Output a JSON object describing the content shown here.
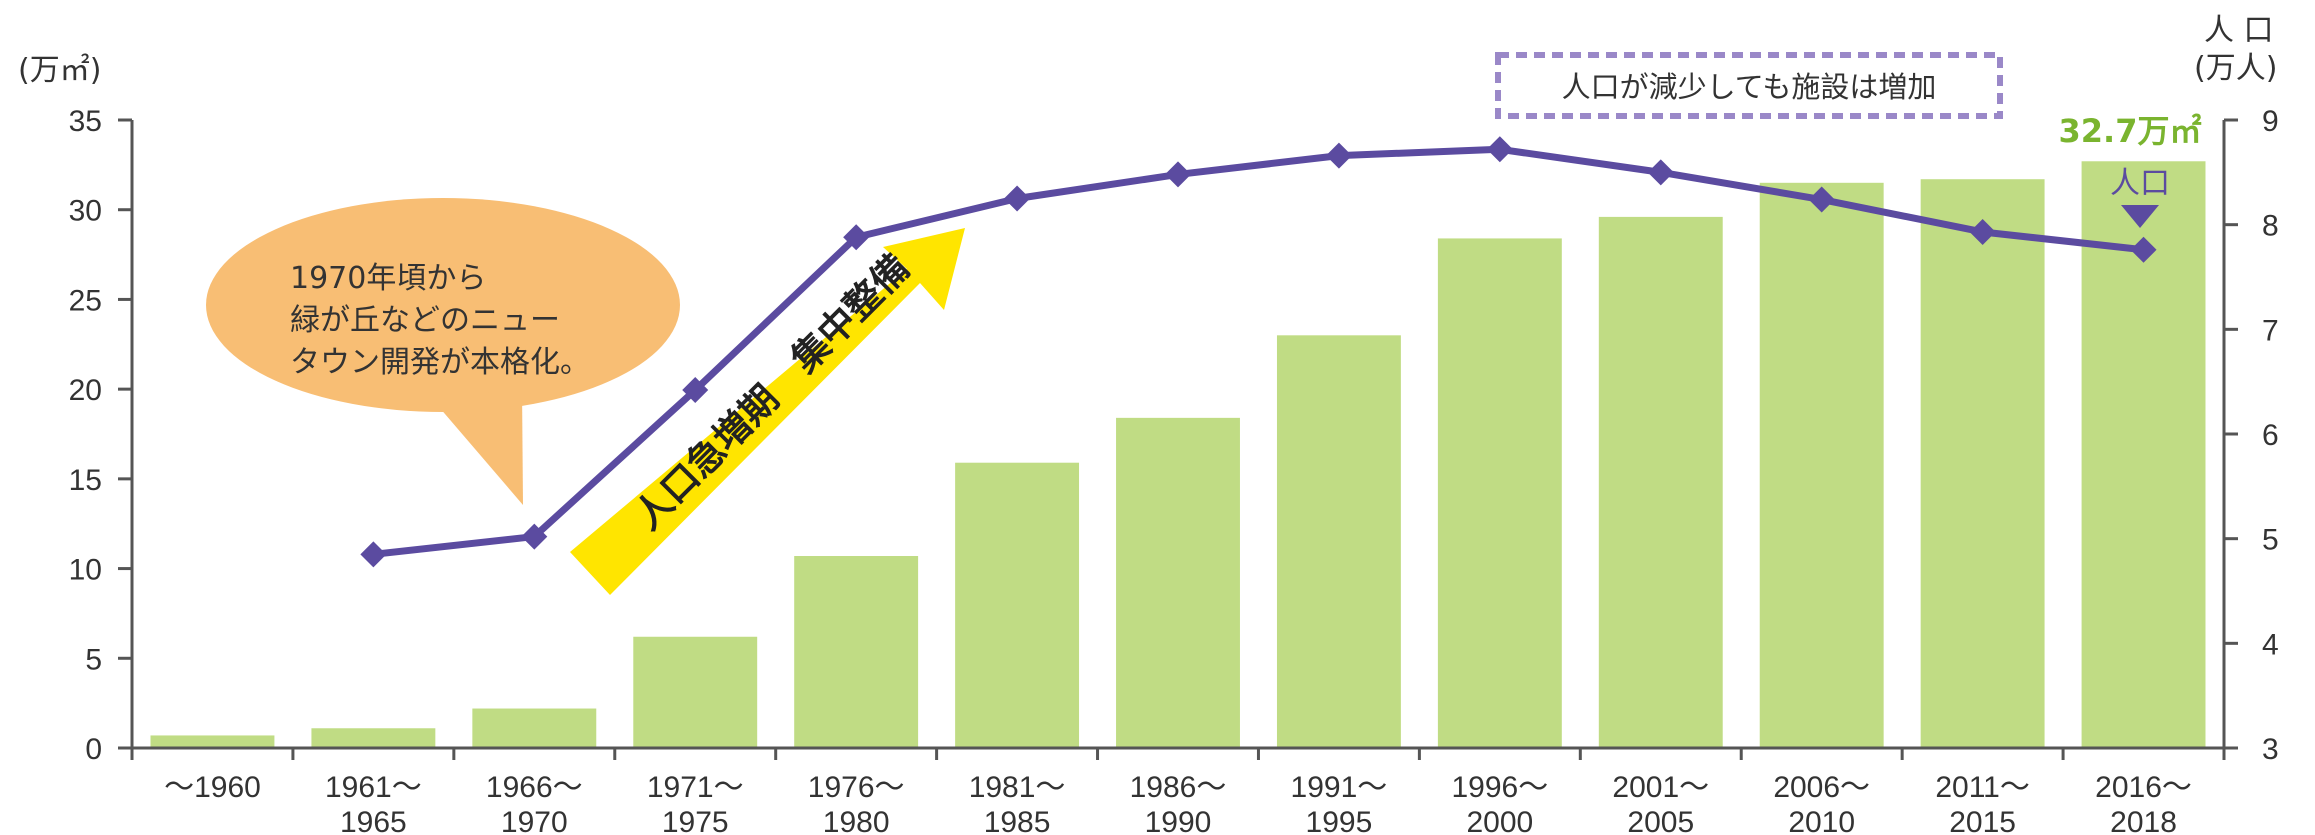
{
  "chart_data": {
    "type": "bar",
    "categories": [
      [
        "～1960"
      ],
      [
        "1961～",
        "1965"
      ],
      [
        "1966～",
        "1970"
      ],
      [
        "1971～",
        "1975"
      ],
      [
        "1976～",
        "1980"
      ],
      [
        "1981～",
        "1985"
      ],
      [
        "1986～",
        "1990"
      ],
      [
        "1991～",
        "1995"
      ],
      [
        "1996～",
        "2000"
      ],
      [
        "2001～",
        "2005"
      ],
      [
        "2006～",
        "2010"
      ],
      [
        "2011～",
        "2015"
      ],
      [
        "2016～",
        "2018"
      ]
    ],
    "series": [
      {
        "type": "bar",
        "axis": "left",
        "color": "#c0dc84",
        "values": [
          0.7,
          1.1,
          2.2,
          6.2,
          10.7,
          15.9,
          18.4,
          23.0,
          28.4,
          29.6,
          31.5,
          31.7,
          32.7
        ]
      },
      {
        "type": "line",
        "axis": "right",
        "color": "#5b4ba0",
        "values": [
          null,
          4.85,
          5.02,
          6.42,
          7.88,
          8.25,
          8.48,
          8.66,
          8.72,
          8.5,
          8.24,
          7.93,
          7.76
        ]
      }
    ],
    "left_axis": {
      "unit": "(万㎡)",
      "min": 0,
      "max": 35,
      "ticks": [
        0,
        5,
        10,
        15,
        20,
        25,
        30,
        35
      ]
    },
    "right_axis": {
      "label": "人 口",
      "unit": "(万人)",
      "min": 3,
      "max": 9,
      "ticks": [
        3,
        4,
        5,
        6,
        7,
        8,
        9
      ]
    },
    "annotations": {
      "bubble": [
        "1970年頃から",
        "緑が丘などのニュー",
        "タウン開発が本格化。"
      ],
      "arrow_text": "人口急増期　集中整備",
      "dashed_box": "人口が減少しても施設は増加",
      "last_value": "32.7万㎡",
      "population_marker": "人口"
    },
    "colors": {
      "bar": "#c0dc84",
      "line": "#5b4ba0",
      "bubble": "#f8be74",
      "arrow": "#ffe500",
      "dashed_box": "#9a88c8",
      "value_label": "#7ab42f"
    },
    "grid": false,
    "legend": "none"
  }
}
